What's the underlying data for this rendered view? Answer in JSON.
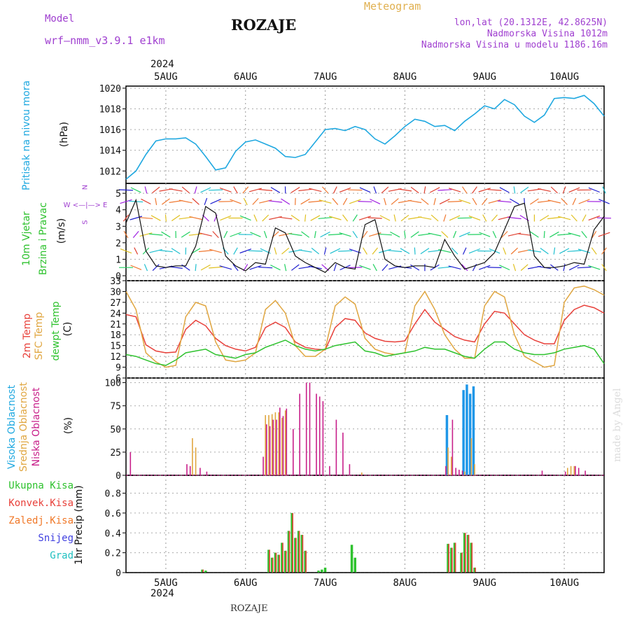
{
  "header": {
    "model_label": "Model",
    "model_name": "wrf—nmm_v3.9.1  e1km",
    "title": "ROZAJE",
    "meteogram": "Meteogram",
    "lonlat": "lon,lat (20.1312E, 42.8625N)",
    "elevation": "Nadmorska Visina 1012m",
    "model_elevation": "Nadmorska Visina u modelu 1186.16m",
    "footer_title": "ROZAJE",
    "watermark": "made by Angel"
  },
  "colors": {
    "pressure": "#1fa8e0",
    "t2m": "#e8403a",
    "sfc": "#e0a640",
    "dew": "#2ec22e",
    "high_cloud": "#1f97e8",
    "mid_cloud": "#e0a640",
    "low_cloud": "#c8208a",
    "total_precip": "#2ec22e",
    "conv_precip": "#e8403a",
    "frz_precip": "#f07828",
    "snow": "#4040e0",
    "hail": "#20c0c0",
    "title_purple": "#a040d0",
    "meteogram_orange": "#e0b050"
  },
  "x_axis": {
    "top_year": "2024",
    "bottom_year": "2024",
    "days": [
      "5AUG",
      "6AUG",
      "7AUG",
      "8AUG",
      "9AUG",
      "10AUG"
    ],
    "start_hours_before_5aug": 12,
    "end_hours_after_10aug": 12
  },
  "panel_labels": {
    "pressure": [
      "Pritisak na nivou mora",
      "(hPa)"
    ],
    "wind": [
      "10m Vjetar",
      "Brzina i Pravac",
      "(m/s)"
    ],
    "wind_compass": [
      "N",
      "W <—|—> E",
      "S"
    ],
    "temp": [
      "2m Temp",
      "SFC Temp",
      "dewpt Temp",
      "(C)"
    ],
    "cloud": [
      "Visoka Oblacnost",
      "Srednja Oblacnost",
      "Niska Oblacnost",
      "(%)"
    ],
    "precip_legend": [
      "Ukupna Kisa",
      "Konvek.Kisa",
      "Zaledj.Kisa",
      "Snijeg",
      "Grad"
    ],
    "precip_unit": "1hr Precip (mm)"
  },
  "chart_data": [
    {
      "type": "line",
      "panel": "pressure",
      "ylabel": "(hPa)",
      "ylim": [
        1010.8,
        1020.2
      ],
      "yticks": [
        1012,
        1014,
        1016,
        1018,
        1020
      ],
      "x_hours": [
        0,
        3,
        6,
        9,
        12,
        15,
        18,
        21,
        24,
        27,
        30,
        33,
        36,
        39,
        42,
        45,
        48,
        51,
        54,
        57,
        60,
        63,
        66,
        69,
        72,
        75,
        78,
        81,
        84,
        87,
        90,
        93,
        96,
        99,
        102,
        105,
        108,
        111,
        114,
        117,
        120,
        123,
        126,
        129,
        132,
        135,
        138,
        141,
        144
      ],
      "series": [
        {
          "name": "Pritisak na nivou mora",
          "values": [
            1011.2,
            1012.0,
            1013.6,
            1014.9,
            1015.1,
            1015.1,
            1015.2,
            1014.6,
            1013.4,
            1012.1,
            1012.3,
            1013.9,
            1014.8,
            1015.0,
            1014.6,
            1014.2,
            1013.4,
            1013.3,
            1013.6,
            1014.8,
            1016.0,
            1016.1,
            1015.9,
            1016.3,
            1016.0,
            1015.1,
            1014.6,
            1015.4,
            1016.3,
            1017.0,
            1016.8,
            1016.3,
            1016.4,
            1015.9,
            1016.8,
            1017.5,
            1018.3,
            1018.0,
            1018.9,
            1018.4,
            1017.3,
            1016.7,
            1017.4,
            1019.0,
            1019.1,
            1019.0,
            1019.3,
            1018.5,
            1017.3
          ]
        }
      ]
    },
    {
      "type": "line",
      "panel": "wind",
      "ylabel": "(m/s)",
      "ylim": [
        -0.3,
        5.6
      ],
      "yticks": [
        0,
        1,
        2,
        3,
        4,
        5
      ],
      "x_hours": [
        0,
        3,
        6,
        9,
        12,
        15,
        18,
        21,
        24,
        27,
        30,
        33,
        36,
        39,
        42,
        45,
        48,
        51,
        54,
        57,
        60,
        63,
        66,
        69,
        72,
        75,
        78,
        81,
        84,
        87,
        90,
        93,
        96,
        99,
        102,
        105,
        108,
        111,
        114,
        117,
        120,
        123,
        126,
        129,
        132,
        135,
        138,
        141,
        144
      ],
      "series": [
        {
          "name": "10m Vjetar",
          "values": [
            3.2,
            4.6,
            1.5,
            0.6,
            0.5,
            0.6,
            0.6,
            1.8,
            4.2,
            3.8,
            1.2,
            0.6,
            0.3,
            0.8,
            0.7,
            2.9,
            2.6,
            1.2,
            0.8,
            0.5,
            0.2,
            0.8,
            0.5,
            0.4,
            3.1,
            3.4,
            1.0,
            0.6,
            0.5,
            0.6,
            0.6,
            0.5,
            2.2,
            1.2,
            0.4,
            0.6,
            0.8,
            1.4,
            2.8,
            4.2,
            4.4,
            1.2,
            0.5,
            0.5,
            0.6,
            0.8,
            0.7,
            2.8,
            3.6
          ]
        }
      ]
    },
    {
      "type": "line",
      "panel": "temperature",
      "ylabel": "(C)",
      "ylim": [
        6,
        33
      ],
      "yticks": [
        6,
        9,
        12,
        15,
        18,
        21,
        24,
        27,
        30,
        33
      ],
      "x_hours": [
        0,
        3,
        6,
        9,
        12,
        15,
        18,
        21,
        24,
        27,
        30,
        33,
        36,
        39,
        42,
        45,
        48,
        51,
        54,
        57,
        60,
        63,
        66,
        69,
        72,
        75,
        78,
        81,
        84,
        87,
        90,
        93,
        96,
        99,
        102,
        105,
        108,
        111,
        114,
        117,
        120,
        123,
        126,
        129,
        132,
        135,
        138,
        141,
        144
      ],
      "series": [
        {
          "name": "2m Temp",
          "values": [
            23.6,
            23.0,
            15.2,
            13.5,
            13.0,
            13.2,
            19.5,
            22.0,
            20.5,
            17.0,
            15.0,
            14.0,
            13.5,
            14.5,
            20.0,
            21.5,
            20.0,
            16.0,
            14.5,
            14.0,
            13.8,
            20.0,
            22.5,
            22.0,
            18.5,
            17.0,
            16.2,
            16.0,
            16.3,
            21.0,
            25.0,
            21.5,
            19.5,
            17.5,
            16.5,
            16.0,
            21.0,
            24.5,
            24.0,
            21.0,
            18.0,
            16.5,
            15.5,
            15.5,
            22.0,
            25.0,
            26.2,
            25.5,
            24.0
          ]
        },
        {
          "name": "SFC Temp",
          "values": [
            30.0,
            25.0,
            13.0,
            10.5,
            9.0,
            9.5,
            23.0,
            27.0,
            26.0,
            16.0,
            11.0,
            10.5,
            11.0,
            13.0,
            25.0,
            27.5,
            24.0,
            15.0,
            12.0,
            12.0,
            14.0,
            26.0,
            28.5,
            26.5,
            17.0,
            14.0,
            13.0,
            12.5,
            13.0,
            26.0,
            30.0,
            25.0,
            18.0,
            14.0,
            11.5,
            11.5,
            26.0,
            30.0,
            28.5,
            18.0,
            12.0,
            10.5,
            9.0,
            9.5,
            27.0,
            31.0,
            31.5,
            30.5,
            29.0
          ]
        },
        {
          "name": "dewpt Temp",
          "values": [
            12.5,
            12.0,
            11.0,
            10.0,
            9.5,
            11.0,
            13.0,
            13.5,
            14.0,
            12.5,
            12.0,
            11.5,
            12.5,
            13.0,
            14.5,
            15.5,
            16.5,
            15.0,
            14.0,
            13.5,
            14.0,
            15.0,
            15.5,
            16.0,
            13.5,
            13.0,
            12.0,
            12.5,
            13.0,
            13.5,
            14.5,
            14.0,
            14.0,
            13.0,
            12.0,
            11.5,
            14.0,
            16.0,
            16.0,
            14.0,
            13.0,
            12.5,
            12.5,
            13.0,
            14.0,
            14.5,
            15.0,
            14.0,
            10.0
          ]
        }
      ]
    },
    {
      "type": "bar",
      "panel": "cloud",
      "ylabel": "(%)",
      "ylim": [
        0,
        105
      ],
      "yticks": [
        0,
        25,
        50,
        75,
        100
      ],
      "series": [
        {
          "name": "Visoka Oblacnost",
          "bars": [
            [
              97,
              65
            ],
            [
              102,
              92
            ],
            [
              103,
              98
            ],
            [
              104,
              88
            ],
            [
              105,
              96
            ]
          ]
        },
        {
          "name": "Srednja Oblacnost",
          "bars": [
            [
              20,
              40
            ],
            [
              21,
              30
            ],
            [
              42,
              65
            ],
            [
              43,
              65
            ],
            [
              44,
              66
            ],
            [
              45,
              68
            ],
            [
              46,
              68
            ],
            [
              47,
              62
            ],
            [
              48,
              70
            ],
            [
              71,
              3
            ],
            [
              97,
              30
            ],
            [
              98,
              20
            ],
            [
              102,
              4
            ],
            [
              104,
              40
            ],
            [
              105,
              12
            ],
            [
              133,
              8
            ],
            [
              134,
              10
            ],
            [
              135,
              10
            ]
          ]
        },
        {
          "name": "Niska Oblacnost",
          "bars": [
            [
              1,
              25
            ],
            [
              18,
              12
            ],
            [
              19,
              10
            ],
            [
              22,
              8
            ],
            [
              24,
              4
            ],
            [
              41,
              20
            ],
            [
              42,
              55
            ],
            [
              43,
              53
            ],
            [
              44,
              60
            ],
            [
              45,
              60
            ],
            [
              46,
              73
            ],
            [
              47,
              64
            ],
            [
              48,
              72
            ],
            [
              50,
              50
            ],
            [
              52,
              88
            ],
            [
              54,
              100
            ],
            [
              55,
              100
            ],
            [
              57,
              88
            ],
            [
              58,
              85
            ],
            [
              59,
              80
            ],
            [
              61,
              10
            ],
            [
              63,
              60
            ],
            [
              65,
              46
            ],
            [
              67,
              12
            ],
            [
              96,
              10
            ],
            [
              98,
              60
            ],
            [
              99,
              8
            ],
            [
              100,
              6
            ],
            [
              101,
              5
            ],
            [
              125,
              5
            ],
            [
              132,
              4
            ],
            [
              135,
              10
            ],
            [
              136,
              8
            ],
            [
              138,
              5
            ]
          ]
        }
      ]
    },
    {
      "type": "bar",
      "panel": "precipitation",
      "ylabel": "1hr Precip (mm)",
      "ylim": [
        0,
        0.98
      ],
      "yticks": [
        0,
        0.2,
        0.4,
        0.6,
        0.8
      ],
      "series": [
        {
          "name": "Ukupna Kisa",
          "bars": [
            [
              23,
              0.03
            ],
            [
              24,
              0.02
            ],
            [
              43,
              0.23
            ],
            [
              44,
              0.15
            ],
            [
              45,
              0.2
            ],
            [
              46,
              0.18
            ],
            [
              47,
              0.3
            ],
            [
              48,
              0.22
            ],
            [
              49,
              0.42
            ],
            [
              50,
              0.6
            ],
            [
              51,
              0.35
            ],
            [
              52,
              0.42
            ],
            [
              53,
              0.38
            ],
            [
              54,
              0.22
            ],
            [
              58,
              0.02
            ],
            [
              59,
              0.03
            ],
            [
              60,
              0.05
            ],
            [
              68,
              0.28
            ],
            [
              69,
              0.15
            ],
            [
              97,
              0.29
            ],
            [
              98,
              0.25
            ],
            [
              99,
              0.3
            ],
            [
              101,
              0.2
            ],
            [
              102,
              0.4
            ],
            [
              103,
              0.38
            ],
            [
              104,
              0.3
            ],
            [
              105,
              0.05
            ]
          ]
        },
        {
          "name": "Konvek.Kisa",
          "bars": [
            [
              23,
              0.03
            ],
            [
              43,
              0.23
            ],
            [
              44,
              0.15
            ],
            [
              45,
              0.2
            ],
            [
              46,
              0.18
            ],
            [
              47,
              0.3
            ],
            [
              48,
              0.22
            ],
            [
              49,
              0.42
            ],
            [
              50,
              0.6
            ],
            [
              51,
              0.35
            ],
            [
              52,
              0.42
            ],
            [
              53,
              0.38
            ],
            [
              54,
              0.22
            ],
            [
              97,
              0.29
            ],
            [
              98,
              0.25
            ],
            [
              99,
              0.3
            ],
            [
              101,
              0.2
            ],
            [
              102,
              0.4
            ],
            [
              103,
              0.38
            ],
            [
              104,
              0.3
            ],
            [
              105,
              0.05
            ]
          ]
        }
      ]
    }
  ]
}
